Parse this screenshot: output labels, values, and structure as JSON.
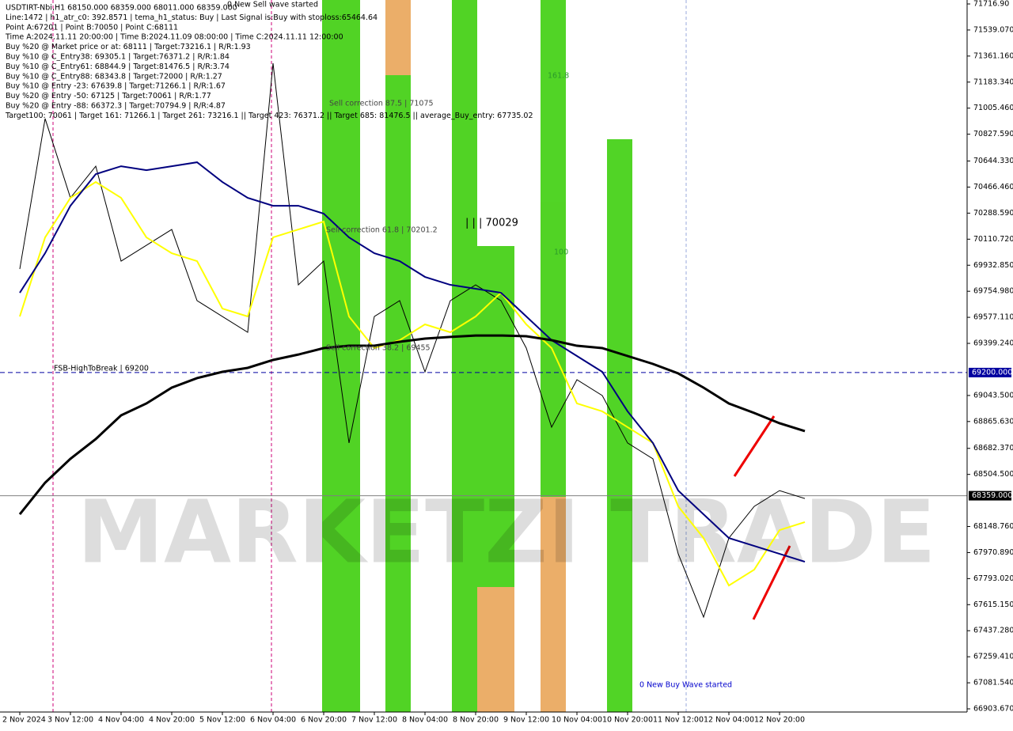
{
  "header": {
    "lines": [
      "USDTIRT-Nbi,H1  68150.000 68359.000 68011.000 68359.000",
      "Line:1472 | h1_atr_c0: 392.8571 | tema_h1_status: Buy | Last Signal is:Buy with stoploss:65464.64",
      "Point A:67201 | Point B:70050 | Point C:68111",
      "Time A:2024.11.11 20:00:00 | Time B:2024.11.09 08:00:00 | Time C:2024.11.11 12:00:00",
      "Buy %20 @ Market price or at: 68111 | Target:73216.1 | R/R:1.93",
      "Buy %10 @ C_Entry38: 69305.1 | Target:76371.2 | R/R:1.84",
      "Buy %10 @ C_Entry61: 68844.9 | Target:81476.5 | R/R:3.74",
      "Buy %10 @ C_Entry88: 68343.8 | Target:72000 | R/R:1.27",
      "Buy %10 @ Entry -23: 67639.8 | Target:71266.1 | R/R:1.67",
      "Buy %20 @ Entry -50: 67125 | Target:70061 | R/R:1.77",
      "Buy %20 @ Entry -88: 66372.3 | Target:70794.9 | R/R:4.87",
      "Target100: 70061 | Target 161: 71266.1 | Target 261: 73216.1 || Target 423: 76371.2 || Target 685: 81476.5 || average_Buy_entry: 67735.02"
    ]
  },
  "chart_data": {
    "type": "line",
    "watermark": "MARKETZI TRADE",
    "annotations": [
      "0 New Sell wave started",
      "Sell correction 87.5 | 71075",
      "Sell correction 61.8 | 70201.2",
      "Sell correction 38.2 | 69455",
      "| | | 70029",
      "161.8",
      "100",
      "FSB-HighToBreak | 69200",
      "0 New Buy Wave started"
    ],
    "categories": [
      "2 Nov 2024",
      null,
      "3 Nov 12:00",
      null,
      "4 Nov 04:00",
      null,
      "4 Nov 20:00",
      null,
      "5 Nov 12:00",
      null,
      "6 Nov 04:00",
      null,
      "6 Nov 20:00",
      null,
      "7 Nov 12:00",
      null,
      "8 Nov 04:00",
      null,
      "8 Nov 20:00",
      null,
      "9 Nov 12:00",
      null,
      "10 Nov 04:00",
      null,
      "10 Nov 20:00",
      null,
      "11 Nov 12:00",
      null,
      "12 Nov 04:00",
      null,
      "12 Nov 20:00",
      null
    ],
    "series": [
      {
        "color": "#000000",
        "width": 1,
        "values": [
          69907,
          70934,
          70393,
          70609,
          69961,
          70069,
          70177,
          69691,
          69583,
          69475,
          71312,
          69799,
          69961,
          68719,
          69583,
          69691,
          69205,
          69691,
          69799,
          69691,
          69367,
          68827,
          69151,
          69043,
          68719,
          68611,
          67962,
          67530,
          68070,
          68286,
          68394,
          68340
        ]
      },
      {
        "color": "#ffff00",
        "width": 2,
        "values": [
          69583,
          70123,
          70393,
          70501,
          70393,
          70123,
          70015,
          69961,
          69637,
          69583,
          70123,
          70177,
          70231,
          69583,
          69367,
          69421,
          69529,
          69475,
          69583,
          69745,
          69529,
          69367,
          68989,
          68935,
          68827,
          68719,
          68286,
          68070,
          67746,
          67854,
          68124,
          68179
        ]
      },
      {
        "color": "#00007f",
        "width": 2,
        "values": [
          69745,
          70015,
          70339,
          70555,
          70609,
          70582,
          70609,
          70636,
          70501,
          70393,
          70339,
          70339,
          70285,
          70123,
          70015,
          69961,
          69853,
          69799,
          69772,
          69745,
          69583,
          69421,
          69313,
          69205,
          68935,
          68719,
          68394,
          68232,
          68070,
          68016,
          67962,
          67908
        ]
      },
      {
        "color": "#000000",
        "width": 3,
        "values": [
          68232,
          68448,
          68611,
          68746,
          68908,
          68989,
          69097,
          69162,
          69205,
          69232,
          69286,
          69323,
          69367,
          69383,
          69383,
          69410,
          69432,
          69443,
          69453,
          69453,
          69448,
          69421,
          69383,
          69367,
          69313,
          69259,
          69194,
          69097,
          68989,
          68924,
          68854,
          68800
        ]
      }
    ],
    "hlines": [
      {
        "value": 69200,
        "label": "69200.000",
        "color": "#0000a0"
      },
      {
        "value": 68359,
        "label": "68359.000",
        "color": "#808080"
      }
    ],
    "ylim": [
      66903.67,
      71716.9
    ],
    "yticks": [
      {
        "value": 71716.9,
        "label": "71716.90"
      },
      {
        "value": 71539.07,
        "label": "71539.070"
      },
      {
        "value": 71361.16,
        "label": "71361.160"
      },
      {
        "value": 71183.34,
        "label": "71183.340"
      },
      {
        "value": 71005.46,
        "label": "71005.460"
      },
      {
        "value": 70827.59,
        "label": "70827.590"
      },
      {
        "value": 70644.33,
        "label": "70644.330"
      },
      {
        "value": 70466.46,
        "label": "70466.460"
      },
      {
        "value": 70288.59,
        "label": "70288.590"
      },
      {
        "value": 70110.72,
        "label": "70110.720"
      },
      {
        "value": 69932.85,
        "label": "69932.850"
      },
      {
        "value": 69754.98,
        "label": "69754.980"
      },
      {
        "value": 69577.11,
        "label": "69577.110"
      },
      {
        "value": 69399.24,
        "label": "69399.240"
      },
      {
        "value": 69043.5,
        "label": "69043.500"
      },
      {
        "value": 68865.63,
        "label": "68865.630"
      },
      {
        "value": 68682.37,
        "label": "68682.370"
      },
      {
        "value": 68504.5,
        "label": "68504.500"
      },
      {
        "value": 68148.76,
        "label": "68148.760"
      },
      {
        "value": 67970.89,
        "label": "67970.890"
      },
      {
        "value": 67793.02,
        "label": "67793.020"
      },
      {
        "value": 67615.15,
        "label": "67615.150"
      },
      {
        "value": 67437.28,
        "label": "67437.280"
      },
      {
        "value": 67259.41,
        "label": "67259.410"
      },
      {
        "value": 67081.54,
        "label": "67081.540"
      },
      {
        "value": 66903.67,
        "label": "66903.670"
      }
    ]
  }
}
